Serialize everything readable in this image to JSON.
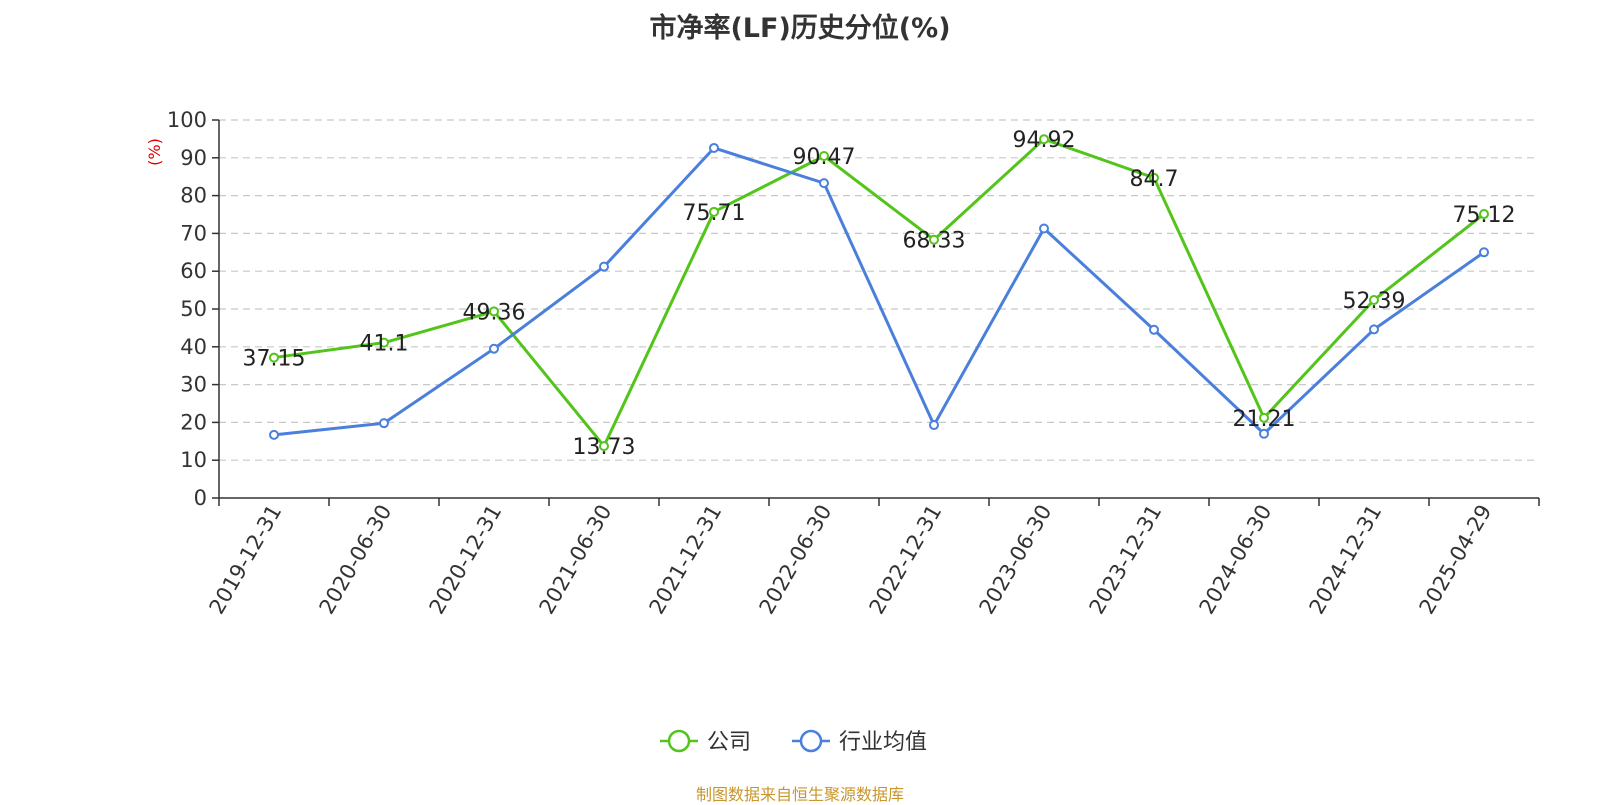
{
  "chart_data": {
    "type": "line",
    "title": "市净率(LF)历史分位(%)",
    "ylabel": "(%)",
    "xlabel": "",
    "ylim": [
      0,
      100
    ],
    "yticks": [
      0,
      10,
      20,
      30,
      40,
      50,
      60,
      70,
      80,
      90,
      100
    ],
    "categories": [
      "2019-12-31",
      "2020-06-30",
      "2020-12-31",
      "2021-06-30",
      "2021-12-31",
      "2022-06-30",
      "2022-12-31",
      "2023-06-30",
      "2023-12-31",
      "2024-06-30",
      "2024-12-31",
      "2025-04-29"
    ],
    "grid": true,
    "legend_position": "bottom",
    "series": [
      {
        "name": "公司",
        "color": "#52c41a",
        "values": [
          37.15,
          41.1,
          49.36,
          13.73,
          75.71,
          90.47,
          68.33,
          94.92,
          84.7,
          21.21,
          52.39,
          75.12
        ],
        "labels": [
          "37.15",
          "41.1",
          "49.36",
          "13.73",
          "75.71",
          "90.47",
          "68.33",
          "94.92",
          "84.7",
          "21.21",
          "52.39",
          "75.12"
        ]
      },
      {
        "name": "行业均值",
        "color": "#4a7fdc",
        "values": [
          16.7,
          19.8,
          39.5,
          61.2,
          92.6,
          83.3,
          19.3,
          71.3,
          44.5,
          17.0,
          44.6,
          65.0
        ]
      }
    ]
  },
  "source_note": "制图数据来自恒生聚源数据库"
}
